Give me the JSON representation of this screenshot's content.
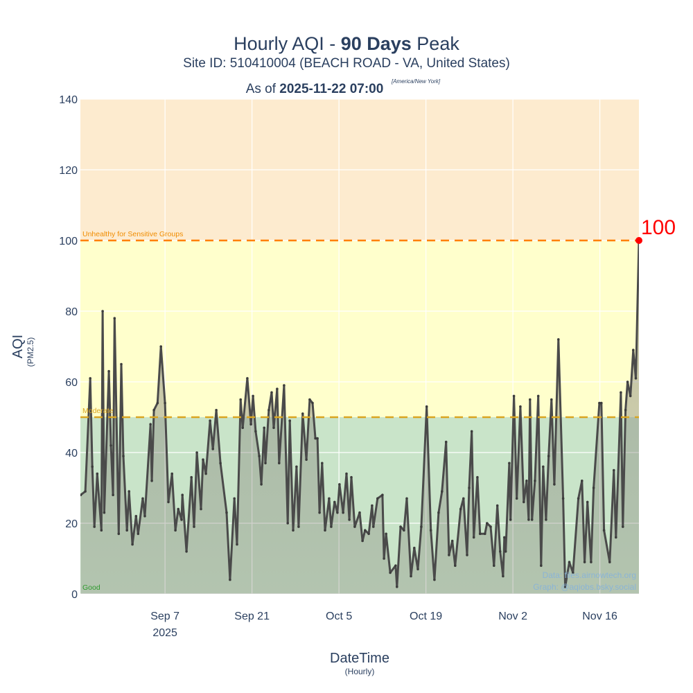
{
  "title": {
    "prefix": "Hourly AQI - ",
    "bold": "90 Days",
    "suffix": " Peak"
  },
  "subtitle": "Site ID: 510410004 (BEACH ROAD - VA, United States)",
  "as_of": {
    "prefix": "As of ",
    "value": "2025-11-22 07:00",
    "timezone": "[America/New York]"
  },
  "watermark": {
    "data": "Data: files.airnowtech.org",
    "graph": "Graph: @aqiobs.bsky.social"
  },
  "chart_data": {
    "type": "line",
    "title": "Hourly AQI - 90 Days Peak",
    "xlabel": "DateTime",
    "xlabel_sub": "(Hourly)",
    "ylabel": "AQI",
    "ylabel_sub": "(PM2.5)",
    "ylim": [
      0,
      140
    ],
    "x_range": [
      "2025-08-24 09:00",
      "2025-11-22 07:00"
    ],
    "grid": true,
    "y_ticks": [
      "0",
      "20",
      "40",
      "60",
      "80",
      "100",
      "120",
      "140"
    ],
    "x_ticks": [
      {
        "date": "2025-09-07",
        "label": "Sep 7",
        "sub": "2025"
      },
      {
        "date": "2025-09-21",
        "label": "Sep 21",
        "sub": ""
      },
      {
        "date": "2025-10-05",
        "label": "Oct 5",
        "sub": ""
      },
      {
        "date": "2025-10-19",
        "label": "Oct 19",
        "sub": ""
      },
      {
        "date": "2025-11-02",
        "label": "Nov 2",
        "sub": ""
      },
      {
        "date": "2025-11-16",
        "label": "Nov 16",
        "sub": ""
      }
    ],
    "bands": [
      {
        "name": "Good",
        "from": 0,
        "to": 50,
        "color": "#c9e4c9",
        "label_color": "#2e9a2e"
      },
      {
        "name": "Moderate",
        "from": 50,
        "to": 100,
        "color": "#ffffcc",
        "label_color": "#daa520"
      },
      {
        "name": "Unhealthy for Sensitive Groups",
        "from": 100,
        "to": 140,
        "color": "#fdebcf",
        "label_color": "#f08c00"
      }
    ],
    "threshold_lines": [
      {
        "value": 50,
        "color": "#daa520"
      },
      {
        "value": 100,
        "color": "#ff8000"
      }
    ],
    "series_color": "#4a4a4a",
    "peak": {
      "date": "2025-11-22 07:00",
      "value": 100,
      "label": "100",
      "color": "#ff0000"
    },
    "series": [
      {
        "x": [
          "2025-08-24 10:00",
          "2025-08-25 04:00",
          "2025-08-25 23:00",
          "2025-08-26 07:00",
          "2025-08-26 15:00",
          "2025-08-27 02:00",
          "2025-08-27 18:00",
          "2025-08-27 23:00",
          "2025-08-28 05:00",
          "2025-08-28 23:00",
          "2025-08-29 07:00",
          "2025-08-29 15:00",
          "2025-08-29 21:00",
          "2025-08-30 13:00",
          "2025-08-30 23:00",
          "2025-08-31 07:00",
          "2025-08-31 21:00",
          "2025-09-01 05:00",
          "2025-09-01 18:00",
          "2025-09-02 08:00",
          "2025-09-02 16:00",
          "2025-09-03 10:00",
          "2025-09-03 18:00",
          "2025-09-04 16:00",
          "2025-09-04 21:00",
          "2025-09-05 05:00",
          "2025-09-05 19:00",
          "2025-09-06 08:00",
          "2025-09-07 00:00",
          "2025-09-07 13:00",
          "2025-09-08 03:00",
          "2025-09-08 16:00",
          "2025-09-09 03:00",
          "2025-09-09 16:00",
          "2025-09-09 19:00",
          "2025-09-10 11:00",
          "2025-09-11 06:00",
          "2025-09-11 16:00",
          "2025-09-12 03:00",
          "2025-09-12 19:00",
          "2025-09-13 03:00",
          "2025-09-13 14:00",
          "2025-09-14 06:00",
          "2025-09-14 17:00",
          "2025-09-15 06:00",
          "2025-09-15 22:00",
          "2025-09-16 22:00",
          "2025-09-17 11:00",
          "2025-09-18 04:00",
          "2025-09-18 14:00",
          "2025-09-19 04:00",
          "2025-09-19 12:00",
          "2025-09-20 06:00",
          "2025-09-20 20:00",
          "2025-09-21 04:00",
          "2025-09-21 14:00",
          "2025-09-22 04:00",
          "2025-09-22 12:00",
          "2025-09-22 23:00",
          "2025-09-23 04:00",
          "2025-09-23 17:00",
          "2025-09-24 04:00",
          "2025-09-24 12:00",
          "2025-09-25 01:00",
          "2025-09-25 09:00",
          "2025-09-26 04:00",
          "2025-09-26 18:00",
          "2025-09-27 02:00",
          "2025-09-27 15:00",
          "2025-09-28 04:00",
          "2025-09-28 12:00",
          "2025-09-29 04:00",
          "2025-09-29 18:00",
          "2025-09-30 07:00",
          "2025-09-30 18:00",
          "2025-10-01 05:00",
          "2025-10-01 13:00",
          "2025-10-01 21:00",
          "2025-10-02 07:00",
          "2025-10-02 18:00",
          "2025-10-03 10:00",
          "2025-10-03 18:00",
          "2025-10-04 07:00",
          "2025-10-04 18:00",
          "2025-10-05 02:00",
          "2025-10-05 16:00",
          "2025-10-06 05:00",
          "2025-10-06 16:00",
          "2025-10-07 00:00",
          "2025-10-07 13:00",
          "2025-10-08 08:00",
          "2025-10-08 19:00",
          "2025-10-09 05:00",
          "2025-10-09 19:00",
          "2025-10-10 08:00",
          "2025-10-10 13:00",
          "2025-10-11 05:00",
          "2025-10-12 00:00",
          "2025-10-12 06:00",
          "2025-10-12 14:00",
          "2025-10-13 06:00",
          "2025-10-14 03:00",
          "2025-10-14 08:00",
          "2025-10-14 22:00",
          "2025-10-15 11:00",
          "2025-10-15 22:00",
          "2025-10-16 14:00",
          "2025-10-17 03:00",
          "2025-10-17 17:00",
          "2025-10-18 06:00",
          "2025-10-19 03:00",
          "2025-10-19 19:00",
          "2025-10-20 09:00",
          "2025-10-21 01:00",
          "2025-10-21 14:00",
          "2025-10-22 06:00",
          "2025-10-22 17:00",
          "2025-10-23 06:00",
          "2025-10-23 17:00",
          "2025-10-24 14:00",
          "2025-10-25 01:00",
          "2025-10-25 15:00",
          "2025-10-25 23:00",
          "2025-10-26 09:00",
          "2025-10-26 17:00",
          "2025-10-27 07:00",
          "2025-10-27 17:00",
          "2025-10-28 12:00",
          "2025-10-28 20:00",
          "2025-10-29 10:00",
          "2025-10-29 23:00",
          "2025-10-30 12:00",
          "2025-10-30 23:00",
          "2025-10-31 10:00",
          "2025-10-31 15:00",
          "2025-10-31 20:00",
          "2025-11-01 10:00",
          "2025-11-01 15:00",
          "2025-11-02 04:00",
          "2025-11-02 15:00",
          "2025-11-03 05:00",
          "2025-11-03 18:00",
          "2025-11-04 05:00",
          "2025-11-04 13:00",
          "2025-11-04 18:00",
          "2025-11-05 02:00",
          "2025-11-05 13:00",
          "2025-11-06 02:00",
          "2025-11-06 13:00",
          "2025-11-06 21:00",
          "2025-11-07 08:00",
          "2025-11-07 18:00",
          "2025-11-08 05:00",
          "2025-11-08 16:00",
          "2025-11-09 08:00",
          "2025-11-10 02:00",
          "2025-11-10 10:00",
          "2025-11-11 02:00",
          "2025-11-11 16:00",
          "2025-11-12 13:00",
          "2025-11-13 03:00",
          "2025-11-13 13:00",
          "2025-11-14 00:00",
          "2025-11-14 14:00",
          "2025-11-15 00:00",
          "2025-11-15 22:00",
          "2025-11-16 06:00",
          "2025-11-16 16:00",
          "2025-11-17 14:00",
          "2025-11-18 06:00",
          "2025-11-18 14:00",
          "2025-11-19 09:00",
          "2025-11-19 17:00",
          "2025-11-20 03:00",
          "2025-11-20 11:00",
          "2025-11-20 22:00",
          "2025-11-21 09:00",
          "2025-11-21 19:00",
          "2025-11-22 07:00"
        ],
        "y": [
          28,
          29,
          61,
          36,
          19,
          34,
          18,
          80,
          23,
          63,
          42,
          28,
          78,
          17,
          65,
          39,
          18,
          29,
          14,
          22,
          17,
          27,
          22,
          48,
          32,
          52,
          54,
          70,
          54,
          26,
          34,
          18,
          24,
          21,
          28,
          12,
          33,
          19,
          40,
          24,
          38,
          34,
          49,
          41,
          52,
          37,
          23,
          4,
          27,
          14,
          55,
          47,
          61,
          48,
          56,
          46,
          39,
          31,
          47,
          37,
          52,
          57,
          47,
          58,
          37,
          59,
          20,
          49,
          18,
          36,
          19,
          51,
          38,
          55,
          54,
          44,
          44,
          23,
          37,
          18,
          27,
          19,
          26,
          23,
          31,
          23,
          34,
          21,
          33,
          19,
          23,
          15,
          18,
          17,
          25,
          19,
          27,
          28,
          10,
          17,
          6,
          8,
          2,
          19,
          18,
          27,
          5,
          13,
          7,
          19,
          53,
          18,
          4,
          23,
          29,
          43,
          11,
          15,
          8,
          24,
          27,
          11,
          30,
          46,
          16,
          33,
          17,
          17,
          20,
          19,
          8,
          25,
          12,
          5,
          16,
          12,
          37,
          21,
          56,
          27,
          53,
          26,
          32,
          21,
          55,
          21,
          32,
          56,
          8,
          36,
          21,
          39,
          55,
          31,
          72,
          27,
          2,
          9,
          6,
          27,
          32,
          9,
          26,
          9,
          30,
          54,
          54,
          18,
          9,
          35,
          16,
          57,
          19,
          52,
          60,
          56,
          69,
          61,
          100
        ]
      }
    ]
  }
}
